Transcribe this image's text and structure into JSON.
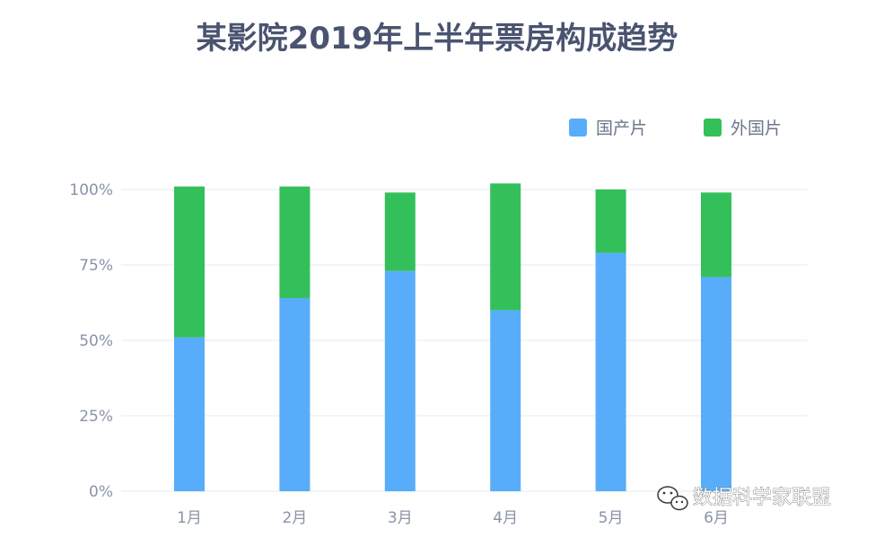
{
  "chart_data": {
    "type": "bar",
    "stacked": true,
    "title": "某影院2019年上半年票房构成趋势",
    "categories": [
      "1月",
      "2月",
      "3月",
      "4月",
      "5月",
      "6月"
    ],
    "series": [
      {
        "name": "国产片",
        "color": "#58adfa",
        "values": [
          51,
          64,
          73,
          60,
          79,
          71
        ]
      },
      {
        "name": "外国片",
        "color": "#33c05a",
        "values": [
          50,
          37,
          26,
          42,
          21,
          28
        ]
      }
    ],
    "ylim": [
      0,
      100
    ],
    "yticks": [
      "0%",
      "25%",
      "50%",
      "75%",
      "100%"
    ],
    "ytick_values": [
      0,
      25,
      50,
      75,
      100
    ],
    "grid": true,
    "legend_position": "top-right"
  },
  "watermark": {
    "text": "数据科学家联盟",
    "icon": "wechat-icon"
  }
}
